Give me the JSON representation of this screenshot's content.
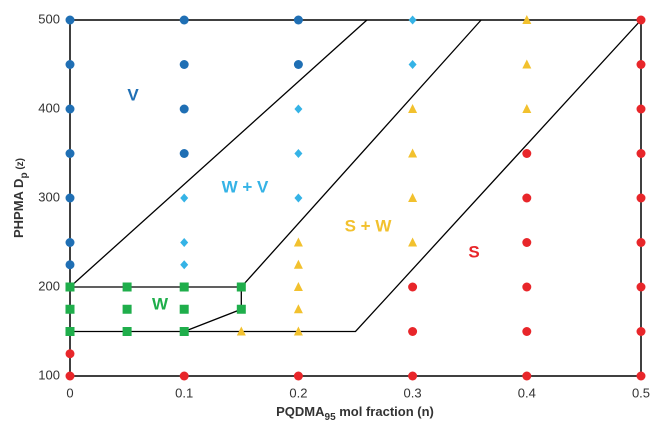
{
  "chart_data": {
    "type": "scatter",
    "x_label": {
      "main": "PQDMA",
      "sub": "95",
      "tail": " mol fraction (n)"
    },
    "y_label": {
      "main": "PHPMA D",
      "sub": "p",
      "tail": "  (z)"
    },
    "xlim": [
      0,
      0.5
    ],
    "ylim": [
      100,
      500
    ],
    "xticks": [
      0,
      0.1,
      0.2,
      0.3,
      0.4,
      0.5
    ],
    "yticks": [
      100,
      200,
      300,
      400,
      500
    ],
    "grid": false,
    "series": [
      {
        "marker": "circle",
        "color": "#1f6fb4",
        "x": [
          0,
          0,
          0,
          0,
          0,
          0,
          0,
          0.1,
          0.1,
          0.1,
          0.1,
          0.2,
          0.2
        ],
        "y": [
          500,
          450,
          400,
          350,
          300,
          250,
          225,
          500,
          450,
          400,
          350,
          500,
          450
        ]
      },
      {
        "marker": "diamond",
        "color": "#35b3e6",
        "x": [
          0.1,
          0.1,
          0.1,
          0.2,
          0.2,
          0.2,
          0.3,
          0.3
        ],
        "y": [
          300,
          250,
          225,
          400,
          350,
          300,
          500,
          450
        ]
      },
      {
        "marker": "triangle",
        "color": "#f2c12e",
        "x": [
          0.15,
          0.2,
          0.2,
          0.2,
          0.2,
          0.2,
          0.3,
          0.3,
          0.3,
          0.3,
          0.4,
          0.4,
          0.4
        ],
        "y": [
          150,
          250,
          225,
          200,
          175,
          150,
          400,
          350,
          300,
          250,
          500,
          450,
          400
        ]
      },
      {
        "marker": "square",
        "color": "#1fae4b",
        "x": [
          0,
          0,
          0,
          0.05,
          0.05,
          0.05,
          0.1,
          0.1,
          0.1,
          0.15,
          0.15
        ],
        "y": [
          200,
          175,
          150,
          200,
          175,
          150,
          200,
          175,
          150,
          200,
          175
        ]
      },
      {
        "marker": "circle",
        "color": "#e8262a",
        "x": [
          0,
          0,
          0.1,
          0.2,
          0.3,
          0.3,
          0.3,
          0.4,
          0.4,
          0.4,
          0.4,
          0.4,
          0.4,
          0.5,
          0.5,
          0.5,
          0.5,
          0.5,
          0.5,
          0.5,
          0.5,
          0.5
        ],
        "y": [
          125,
          100,
          100,
          100,
          200,
          150,
          100,
          350,
          300,
          250,
          200,
          150,
          100,
          500,
          450,
          400,
          350,
          300,
          250,
          200,
          150,
          100
        ]
      }
    ],
    "boundaries": [
      {
        "x": [
          0,
          0.26
        ],
        "y": [
          200,
          500
        ]
      },
      {
        "x": [
          0.1,
          0.15,
          0.15,
          0.36
        ],
        "y": [
          150,
          175,
          200,
          500
        ]
      },
      {
        "x": [
          0,
          0.15
        ],
        "y": [
          200,
          200
        ]
      },
      {
        "x": [
          0,
          0.25,
          0.5
        ],
        "y": [
          150,
          150,
          500
        ]
      }
    ],
    "annotations": [
      {
        "text": "V",
        "color": "#1f6fb4"
      },
      {
        "text": "W + V",
        "color": "#35b3e6"
      },
      {
        "text": "S + W",
        "color": "#f2c12e"
      },
      {
        "text": "S",
        "color": "#e8262a"
      },
      {
        "text": "W",
        "color": "#1fae4b"
      }
    ]
  }
}
